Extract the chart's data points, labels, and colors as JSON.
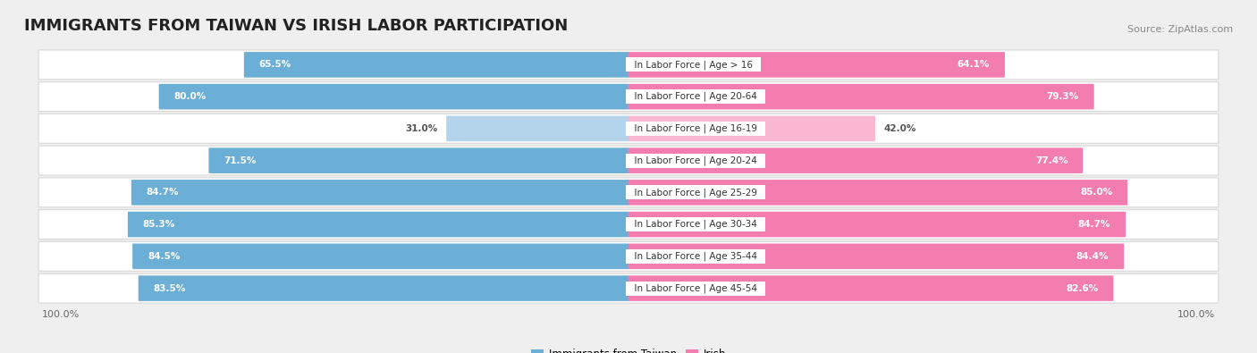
{
  "title": "IMMIGRANTS FROM TAIWAN VS IRISH LABOR PARTICIPATION",
  "source": "Source: ZipAtlas.com",
  "categories": [
    "In Labor Force | Age > 16",
    "In Labor Force | Age 20-64",
    "In Labor Force | Age 16-19",
    "In Labor Force | Age 20-24",
    "In Labor Force | Age 25-29",
    "In Labor Force | Age 30-34",
    "In Labor Force | Age 35-44",
    "In Labor Force | Age 45-54"
  ],
  "taiwan_values": [
    65.5,
    80.0,
    31.0,
    71.5,
    84.7,
    85.3,
    84.5,
    83.5
  ],
  "irish_values": [
    64.1,
    79.3,
    42.0,
    77.4,
    85.0,
    84.7,
    84.4,
    82.6
  ],
  "taiwan_color": "#6baed6",
  "taiwan_light_color": "#b3d4eb",
  "irish_color": "#f47db0",
  "irish_light_color": "#f9b8d0",
  "bg_color": "#efefef",
  "row_bg_color": "#ffffff",
  "row_border_color": "#d8d8d8",
  "max_val": 100.0,
  "bar_height": 0.68,
  "legend_taiwan": "Immigrants from Taiwan",
  "legend_irish": "Irish",
  "title_fontsize": 13,
  "source_fontsize": 8,
  "label_fontsize": 7.5,
  "value_fontsize": 7.5,
  "axis_label_fontsize": 8
}
